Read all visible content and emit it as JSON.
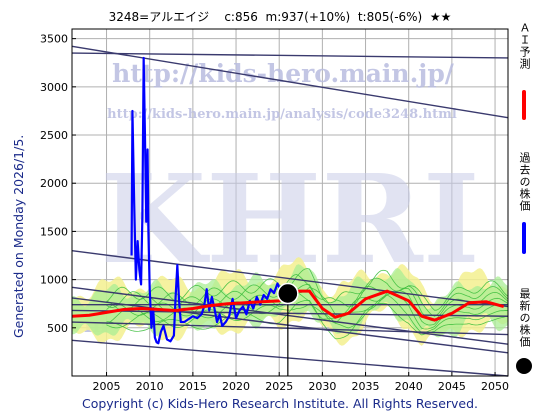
{
  "header": {
    "text": "3248=アルエイジ    c:856  m:937(+10%)  t:805(-6%)  ★★"
  },
  "left_label": "Generated on Monday 2026/1/5.",
  "footer": "Copyright (c) Kids-Hero Research Institute. All Rights Reserved.",
  "watermarks": {
    "url_main": "http://kids-hero.main.jp/",
    "url_analysis": "http://kids-hero.main.jp/analysis/code3248.html",
    "logo": "KHRI",
    "bottom_fragment": "in"
  },
  "legend": [
    {
      "label": "ＡＩ予測",
      "color": "#ff0000",
      "marker": "line"
    },
    {
      "label": "過去の株価",
      "color": "#0000ff",
      "marker": "line"
    },
    {
      "label": "最新の株価",
      "color": "#000000",
      "marker": "dot"
    }
  ],
  "chart_data": {
    "type": "line",
    "title": "3248=アルエイジ    c:856  m:937(+10%)  t:805(-6%)  ★★",
    "xlim": [
      2001,
      2051.5
    ],
    "ylim": [
      0,
      3600
    ],
    "xticks": [
      2005,
      2010,
      2015,
      2020,
      2025,
      2030,
      2035,
      2040,
      2045,
      2050
    ],
    "yticks": [
      500,
      1000,
      1500,
      2000,
      2500,
      3000,
      3500
    ],
    "grid": true,
    "latest": {
      "x": 2026.0,
      "y": 856
    },
    "series": [
      {
        "name": "過去の株価",
        "color": "#0000ff",
        "points": [
          [
            2007.9,
            1250
          ],
          [
            2008.0,
            2750
          ],
          [
            2008.2,
            1800
          ],
          [
            2008.4,
            1000
          ],
          [
            2008.6,
            1400
          ],
          [
            2008.8,
            1100
          ],
          [
            2009.0,
            950
          ],
          [
            2009.15,
            1650
          ],
          [
            2009.3,
            3300
          ],
          [
            2009.45,
            2500
          ],
          [
            2009.6,
            1600
          ],
          [
            2009.75,
            2350
          ],
          [
            2009.85,
            1500
          ],
          [
            2010.0,
            900
          ],
          [
            2010.2,
            500
          ],
          [
            2010.4,
            700
          ],
          [
            2010.6,
            400
          ],
          [
            2010.8,
            350
          ],
          [
            2011.0,
            340
          ],
          [
            2011.3,
            460
          ],
          [
            2011.6,
            520
          ],
          [
            2012.0,
            380
          ],
          [
            2012.4,
            360
          ],
          [
            2012.8,
            420
          ],
          [
            2013.0,
            820
          ],
          [
            2013.2,
            1150
          ],
          [
            2013.4,
            780
          ],
          [
            2013.6,
            560
          ],
          [
            2014.0,
            560
          ],
          [
            2014.5,
            590
          ],
          [
            2015.0,
            620
          ],
          [
            2015.5,
            600
          ],
          [
            2016.0,
            640
          ],
          [
            2016.3,
            720
          ],
          [
            2016.6,
            900
          ],
          [
            2016.9,
            680
          ],
          [
            2017.2,
            820
          ],
          [
            2017.5,
            700
          ],
          [
            2017.8,
            560
          ],
          [
            2018.1,
            640
          ],
          [
            2018.4,
            520
          ],
          [
            2018.8,
            560
          ],
          [
            2019.2,
            620
          ],
          [
            2019.6,
            800
          ],
          [
            2020.0,
            600
          ],
          [
            2020.4,
            680
          ],
          [
            2020.8,
            720
          ],
          [
            2021.2,
            640
          ],
          [
            2021.6,
            780
          ],
          [
            2022.0,
            700
          ],
          [
            2022.4,
            820
          ],
          [
            2022.8,
            740
          ],
          [
            2023.2,
            840
          ],
          [
            2023.6,
            800
          ],
          [
            2024.0,
            900
          ],
          [
            2024.4,
            860
          ],
          [
            2024.8,
            960
          ],
          [
            2025.2,
            880
          ],
          [
            2025.6,
            856
          ]
        ]
      },
      {
        "name": "ＡＩ予測",
        "color": "#ff0000",
        "points": [
          [
            2001,
            620
          ],
          [
            2003,
            630
          ],
          [
            2005,
            660
          ],
          [
            2007,
            690
          ],
          [
            2009,
            700
          ],
          [
            2011,
            690
          ],
          [
            2013,
            680
          ],
          [
            2015,
            700
          ],
          [
            2017,
            730
          ],
          [
            2019,
            750
          ],
          [
            2021,
            760
          ],
          [
            2023,
            770
          ],
          [
            2025,
            780
          ],
          [
            2027,
            880
          ],
          [
            2028.5,
            880
          ],
          [
            2030,
            700
          ],
          [
            2031.5,
            610
          ],
          [
            2033,
            650
          ],
          [
            2035,
            800
          ],
          [
            2037.5,
            880
          ],
          [
            2040,
            780
          ],
          [
            2041.5,
            620
          ],
          [
            2043,
            580
          ],
          [
            2045,
            650
          ],
          [
            2047,
            760
          ],
          [
            2049,
            770
          ],
          [
            2051,
            720
          ]
        ]
      }
    ],
    "trend_lines": [
      {
        "from": [
          2001,
          3350
        ],
        "to": [
          2051.5,
          3300
        ]
      },
      {
        "from": [
          2001,
          3420
        ],
        "to": [
          2051.5,
          2680
        ]
      },
      {
        "from": [
          2001,
          1300
        ],
        "to": [
          2051.5,
          720
        ]
      },
      {
        "from": [
          2001,
          920
        ],
        "to": [
          2051.5,
          330
        ]
      },
      {
        "from": [
          2001,
          810
        ],
        "to": [
          2051.5,
          240
        ]
      },
      {
        "from": [
          2001,
          740
        ],
        "to": [
          2051.5,
          740
        ]
      },
      {
        "from": [
          2001,
          680
        ],
        "to": [
          2051.5,
          620
        ]
      },
      {
        "from": [
          2001,
          560
        ],
        "to": [
          2051.5,
          430
        ]
      },
      {
        "from": [
          2001,
          370
        ],
        "to": [
          2051.5,
          0
        ]
      }
    ]
  }
}
